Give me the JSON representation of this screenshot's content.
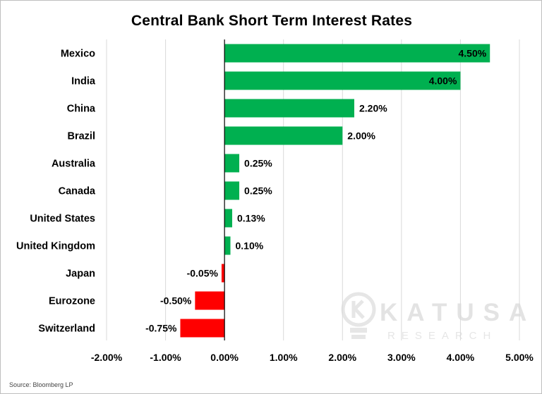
{
  "chart_data": {
    "type": "bar",
    "orientation": "horizontal",
    "title": "Central Bank Short Term Interest Rates",
    "categories": [
      "Mexico",
      "India",
      "China",
      "Brazil",
      "Australia",
      "Canada",
      "United States",
      "United Kingdom",
      "Japan",
      "Eurozone",
      "Switzerland"
    ],
    "values": [
      4.5,
      4.0,
      2.2,
      2.0,
      0.25,
      0.25,
      0.13,
      0.1,
      -0.05,
      -0.5,
      -0.75
    ],
    "data_labels": [
      "4.50%",
      "4.00%",
      "2.20%",
      "2.00%",
      "0.25%",
      "0.25%",
      "0.13%",
      "0.10%",
      "-0.05%",
      "-0.50%",
      "-0.75%"
    ],
    "xlim": [
      -2.0,
      5.0
    ],
    "x_ticks": [
      -2.0,
      -1.0,
      0.0,
      1.0,
      2.0,
      3.0,
      4.0,
      5.0
    ],
    "x_tick_labels": [
      "-2.00%",
      "-1.00%",
      "0.00%",
      "1.00%",
      "2.00%",
      "3.00%",
      "4.00%",
      "5.00%"
    ],
    "grid": "vertical",
    "legend": "none",
    "colors": {
      "positive": "#00b050",
      "negative": "#ff0000",
      "gridline": "#d9d9d9",
      "axis": "#000000"
    }
  },
  "source": "Source: Bloomberg LP",
  "watermark": {
    "brand": "KATUSA",
    "sub": "RESEARCH"
  }
}
